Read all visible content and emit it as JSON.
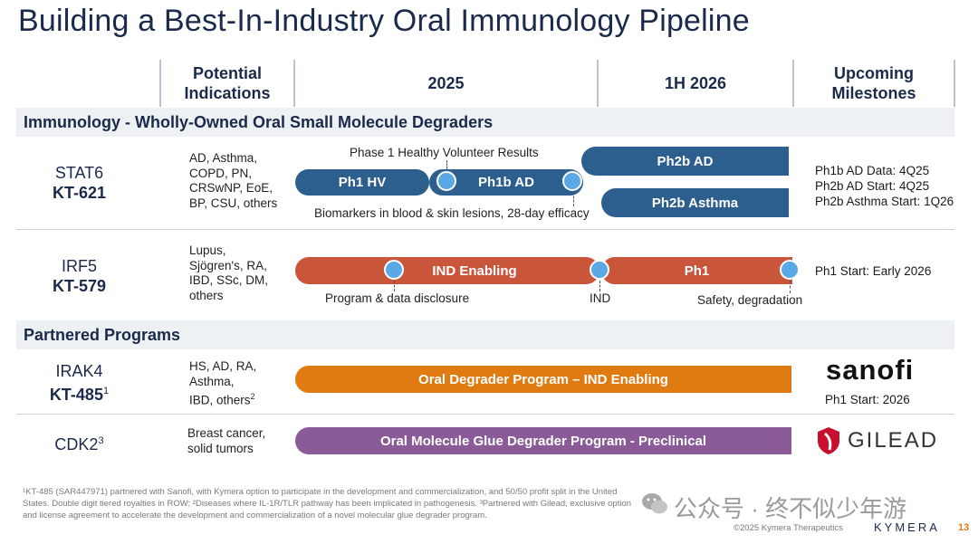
{
  "title": "Building a Best-In-Industry Oral Immunology Pipeline",
  "header": {
    "col_indications": "Potential Indications",
    "col_2025": "2025",
    "col_1h2026": "1H 2026",
    "col_milestones": "Upcoming Milestones"
  },
  "sections": {
    "immunology": "Immunology - Wholly-Owned Oral Small Molecule Degraders",
    "partnered": "Partnered Programs"
  },
  "stat6": {
    "target": "STAT6",
    "compound": "KT-621",
    "indications": [
      "AD, Asthma,",
      "COPD, PN,",
      "CRSwNP, EoE,",
      "BP, CSU, others"
    ],
    "top_note": "Phase 1 Healthy Volunteer Results",
    "bar1": "Ph1 HV",
    "bar2": "Ph1b AD",
    "bar3": "Ph2b AD",
    "bar4": "Ph2b Asthma",
    "bottom_note": "Biomarkers in blood & skin lesions, 28-day efficacy",
    "milestones": [
      "Ph1b AD Data: 4Q25",
      "Ph2b AD Start: 4Q25",
      "Ph2b Asthma Start: 1Q26"
    ]
  },
  "irf5": {
    "target": "IRF5",
    "compound": "KT-579",
    "indications": [
      "Lupus,",
      "Sjögren's, RA,",
      "IBD, SSc, DM,",
      "others"
    ],
    "bar1": "IND Enabling",
    "bar2": "Ph1",
    "note1": "Program & data disclosure",
    "note2": "IND",
    "note3": "Safety, degradation",
    "milestone": "Ph1 Start: Early 2026"
  },
  "irak4": {
    "target": "IRAK4",
    "compound": "KT-485",
    "compound_sup": "1",
    "indications_1": "HS, AD, RA,",
    "indications_2": "Asthma,",
    "indications_3": "IBD, others",
    "indications_sup": "2",
    "bar": "Oral Degrader Program – IND Enabling",
    "partner": "sanofi",
    "milestone": "Ph1 Start: 2026"
  },
  "cdk2": {
    "target": "CDK2",
    "target_sup": "3",
    "indications": [
      "Breast cancer,",
      "solid tumors"
    ],
    "bar": "Oral Molecule Glue Degrader Program - Preclinical",
    "partner": "GILEAD"
  },
  "footnote": {
    "line1": "¹KT-485 (SAR447971) partnered with Sanofi, with Kymera option to participate in the development and commercialization, and 50/50 profit split in the United",
    "line2": "States. Double digit tiered royalties in ROW; ²Diseases where IL-1R/TLR pathway has been implicated in pathogenesis. ³Partnered with Gilead, exclusive option",
    "line3": "and license agreement to accelerate the development and commercialization of a novel molecular glue degrader program."
  },
  "copyright": "©2025 Kymera Therapeutics",
  "brand": "KYMERA",
  "page_number": "13",
  "watermark": "公众号 · 终不似少年游",
  "colors": {
    "navy": "#2d5f8e",
    "rust": "#c9553b",
    "orange": "#e07b12",
    "purple": "#8a5b98",
    "milestone_dot": "#5aa9e6"
  }
}
